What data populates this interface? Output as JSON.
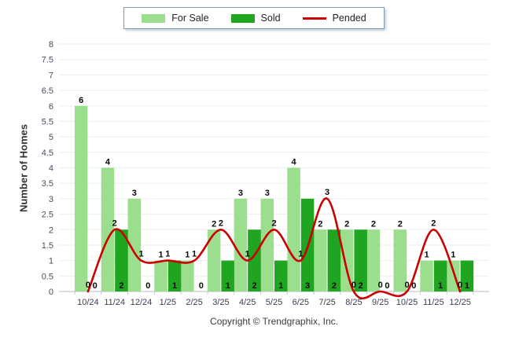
{
  "legend": {
    "items": [
      {
        "label": "For Sale",
        "type": "bar",
        "color": "#9BDE8D"
      },
      {
        "label": "Sold",
        "type": "bar",
        "color": "#1FA51F"
      },
      {
        "label": "Pended",
        "type": "line",
        "color": "#CC0000"
      }
    ]
  },
  "y_axis_title": "Number of Homes",
  "footer": {
    "text": "Copyright © Trendgraphix, Inc."
  },
  "chart_data": {
    "type": "bar",
    "subtype": "grouped-bars-with-line-overlay",
    "title": "",
    "xlabel": "",
    "ylabel": "Number of Homes",
    "ylim": [
      0,
      8
    ],
    "y_step": 0.5,
    "grid": true,
    "legend_position": "top-center",
    "value_labels": true,
    "categories": [
      "10/24",
      "11/24",
      "12/24",
      "1/25",
      "2/25",
      "3/25",
      "4/25",
      "5/25",
      "6/25",
      "7/25",
      "8/25",
      "9/25",
      "10/25",
      "11/25",
      "12/25"
    ],
    "series": [
      {
        "name": "For Sale",
        "type": "bar",
        "color": "#9BDE8D",
        "values": [
          6,
          4,
          3,
          1,
          1,
          2,
          3,
          3,
          4,
          2,
          2,
          2,
          2,
          1,
          1
        ]
      },
      {
        "name": "Sold",
        "type": "bar",
        "color": "#1FA51F",
        "values": [
          0,
          2,
          0,
          1,
          0,
          1,
          2,
          1,
          3,
          2,
          2,
          0,
          0,
          1,
          1
        ]
      },
      {
        "name": "Pended",
        "type": "line",
        "color": "#CC0000",
        "values": [
          0,
          2,
          1,
          1,
          1,
          2,
          1,
          2,
          1,
          3,
          0,
          0,
          0,
          2,
          0
        ]
      }
    ]
  }
}
